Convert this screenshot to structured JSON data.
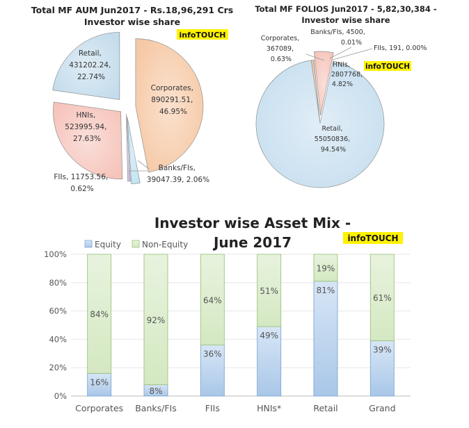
{
  "chart_data": [
    {
      "type": "pie",
      "title": "Total MF AUM Jun2017 - Rs.18,96,291 Crs",
      "subtitle": "Investor wise share",
      "badge": "infoTOUCH",
      "slices": [
        {
          "name": "Corporates",
          "value": "890291.51",
          "percent": "46.95%",
          "color": "#f6c9a6"
        },
        {
          "name": "Banks/FIs",
          "value": "39047.39",
          "percent": "2.06%",
          "color": "#bfe3f4"
        },
        {
          "name": "FIIs",
          "value": "11753.56",
          "percent": "0.62%",
          "color": "#c9b8de"
        },
        {
          "name": "HNIs",
          "value": "523995.94",
          "percent": "27.63%",
          "color": "#f6c4bb"
        },
        {
          "name": "Retail",
          "value": "431202.24",
          "percent": "22.74%",
          "color": "#c4dcec"
        }
      ]
    },
    {
      "type": "pie",
      "title": "Total MF FOLIOS Jun2017 - 5,82,30,384 -",
      "subtitle": "Investor wise share",
      "badge": "infoTOUCH",
      "slices": [
        {
          "name": "Corporates",
          "value": "367089",
          "percent": "0.63%",
          "color": "#f3c29c"
        },
        {
          "name": "Banks/FIs",
          "value": "4500",
          "percent": "0.01%",
          "color": "#bfe3f4"
        },
        {
          "name": "FIIs",
          "value": "191",
          "percent": "0.00%",
          "color": "#c9b8de"
        },
        {
          "name": "HNIs",
          "value": "2807768",
          "percent": "4.82%",
          "color": "#f6c4bb"
        },
        {
          "name": "Retail",
          "value": "55050836",
          "percent": "94.54%",
          "color": "#c8dff0"
        }
      ]
    },
    {
      "type": "bar",
      "stacked": true,
      "title_line1": "Investor wise Asset Mix -",
      "title_line2": "June 2017",
      "badge": "infoTOUCH",
      "categories": [
        "Corporates",
        "Banks/FIs",
        "FIIs",
        "HNIs*",
        "Retail",
        "Grand"
      ],
      "series": [
        {
          "name": "Equity",
          "values": [
            16,
            8,
            36,
            49,
            81,
            39
          ],
          "color": "#c7dcf2"
        },
        {
          "name": "Non-Equity",
          "values": [
            84,
            92,
            64,
            51,
            19,
            61
          ],
          "color": "#e2efd5"
        }
      ],
      "yticks": [
        "0%",
        "20%",
        "40%",
        "60%",
        "80%",
        "100%"
      ],
      "ylim": [
        0,
        100
      ],
      "legend": "top-left"
    }
  ]
}
